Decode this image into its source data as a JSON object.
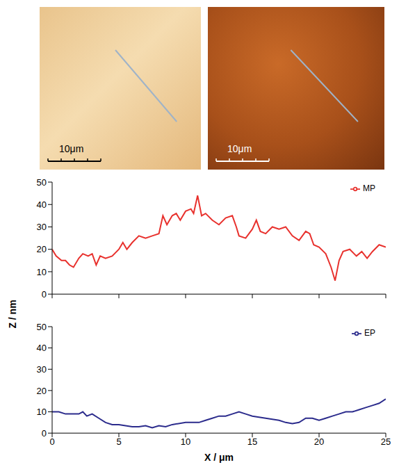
{
  "images": [
    {
      "scale_bar": "10μm"
    },
    {
      "scale_bar": "10μm"
    }
  ],
  "ylabel": "Z / nm",
  "chart_data": [
    {
      "type": "line",
      "xlim": [
        0,
        25
      ],
      "xticks": [
        0,
        5,
        10,
        15,
        20,
        25
      ],
      "ylim": [
        0,
        50
      ],
      "yticks": [
        0,
        10,
        20,
        30,
        40,
        50
      ],
      "grid": false,
      "legend": "upper right",
      "tick_labels": "y",
      "series": [
        {
          "name": "MP",
          "color": "#e8312d",
          "x": [
            0,
            0.3,
            0.7,
            1,
            1.3,
            1.6,
            2,
            2.3,
            2.7,
            3,
            3.3,
            3.6,
            4,
            4.5,
            5,
            5.3,
            5.6,
            6,
            6.5,
            7,
            7.5,
            8,
            8.3,
            8.6,
            9,
            9.3,
            9.6,
            10,
            10.4,
            10.6,
            10.9,
            11.2,
            11.5,
            12,
            12.5,
            13,
            13.5,
            13.8,
            14,
            14.5,
            15,
            15.3,
            15.6,
            16,
            16.5,
            17,
            17.5,
            18,
            18.5,
            19,
            19.3,
            19.6,
            20,
            20.5,
            20.9,
            21.2,
            21.5,
            21.8,
            22.3,
            22.8,
            23.2,
            23.6,
            24,
            24.5,
            25
          ],
          "values": [
            20,
            17,
            15,
            15,
            13,
            12,
            16,
            18,
            17,
            18,
            13,
            17,
            16,
            17,
            20,
            23,
            20,
            23,
            26,
            25,
            26,
            27,
            35,
            31,
            35,
            36,
            33,
            37,
            38,
            36,
            44,
            35,
            36,
            33,
            31,
            34,
            35,
            30,
            26,
            25,
            29,
            33,
            28,
            27,
            30,
            29,
            30,
            26,
            24,
            28,
            27,
            22,
            21,
            18,
            12,
            6,
            15,
            19,
            20,
            17,
            19,
            16,
            19,
            22,
            21
          ]
        }
      ]
    },
    {
      "type": "line",
      "xlabel": "X / μm",
      "xlim": [
        0,
        25
      ],
      "xticks": [
        0,
        5,
        10,
        15,
        20,
        25
      ],
      "ylim": [
        0,
        50
      ],
      "yticks": [
        0,
        10,
        20,
        30,
        40,
        50
      ],
      "grid": false,
      "legend": "upper right",
      "series": [
        {
          "name": "EP",
          "color": "#2b2b8c",
          "x": [
            0,
            0.5,
            1,
            1.5,
            2,
            2.3,
            2.6,
            3,
            3.5,
            4,
            4.5,
            5,
            5.5,
            6,
            6.5,
            7,
            7.5,
            8,
            8.5,
            9,
            10,
            11,
            11.5,
            12,
            12.5,
            13,
            13.5,
            14,
            14.5,
            15,
            16,
            17,
            17.5,
            18,
            18.5,
            19,
            19.5,
            20,
            20.5,
            21,
            21.5,
            22,
            22.5,
            23,
            23.5,
            24,
            24.5,
            25
          ],
          "values": [
            10,
            10,
            9,
            9,
            9,
            10,
            8,
            9,
            7,
            5,
            4,
            4,
            3.5,
            3,
            3,
            3.5,
            2.5,
            3.5,
            3,
            4,
            5,
            5,
            6,
            7,
            8,
            8,
            9,
            10,
            9,
            8,
            7,
            6,
            5,
            4.5,
            5,
            7,
            7,
            6,
            7,
            8,
            9,
            10,
            10,
            11,
            12,
            13,
            14,
            16
          ]
        }
      ]
    }
  ]
}
